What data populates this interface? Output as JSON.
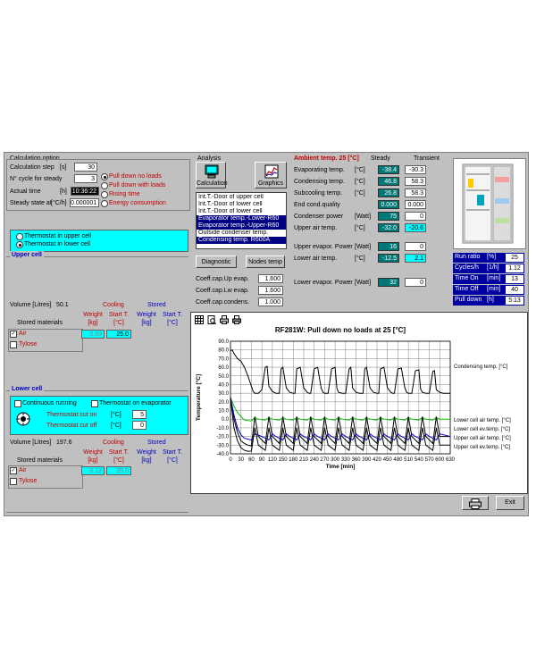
{
  "calc": {
    "title": "Calculation option",
    "step_label": "Calculation step",
    "step_unit": "[s]",
    "step_value": "30",
    "ncycle_label": "N° cycle for steady",
    "ncycle_value": "3",
    "actual_time_label": "Actual time",
    "actual_time_unit": "[h]",
    "actual_time_value": "10:36:22",
    "steady_label": "Steady state at",
    "steady_unit": "[°C/h]",
    "steady_value": "0.000001",
    "modes": [
      "Pull down no loads",
      "Pull down with loads",
      "Rising time",
      "Energy consumption"
    ],
    "selected_mode": 0
  },
  "thermostat": {
    "options": [
      "Thermostat in upper cell",
      "Thermostat in lower cell"
    ],
    "selected": 1
  },
  "upper_cell": {
    "title": "Upper cell",
    "volume_label": "Volume [Litres]",
    "volume_value": "50.1",
    "cooling_header": "Cooling",
    "stored_header": "Stored",
    "stored_materials_label": "Stored materials",
    "weight_label": "Weight [kg]",
    "start_label": "Start T. [°C]",
    "rows": [
      {
        "name": "Air",
        "checked": true,
        "weight": "0.03",
        "start": "25.0"
      },
      {
        "name": "Tylose",
        "checked": false,
        "weight": "",
        "start": ""
      }
    ]
  },
  "lower_cell": {
    "title": "Lower cell",
    "continuous_label": "Continuous running",
    "thermostat_evap_label": "Thermostat on evaporator",
    "cut_on_label": "Thermostat cut on",
    "cut_on_unit": "[°C]",
    "cut_on_value": "5",
    "cut_off_label": "Thermostat cut off",
    "cut_off_unit": "[°C]",
    "cut_off_value": "0",
    "volume_label": "Volume [Litres]",
    "volume_value": "197.6",
    "cooling_header": "Cooling",
    "stored_header": "Stored",
    "stored_materials_label": "Stored materials",
    "weight_label": "Weight [kg]",
    "start_label": "Start T. [°C]",
    "rows": [
      {
        "name": "Air",
        "checked": true,
        "weight": "0.12",
        "start": "25.0"
      },
      {
        "name": "Tylose",
        "checked": false,
        "weight": "",
        "start": ""
      }
    ]
  },
  "analysis": {
    "title": "Analysis",
    "calc_button": "Calculation",
    "graphics_button": "Graphics",
    "list": [
      "Int.T.-Door of upper cell",
      "Int.T.-Door of lower cell",
      "Int.T.-Door of lower cell",
      "Evaporator temp.-Lower-R60",
      "Evaporator temp.-Upper-R60",
      "Outside condenser temp.",
      "Condensing temp. R600A"
    ],
    "diagnostic_button": "Diagnostic",
    "nodes_button": "Nodes temp",
    "coeffs": [
      {
        "label": "Coeff.cap.Up evap.",
        "value": "1.600"
      },
      {
        "label": "Coeff.cap.Lw evap.",
        "value": "1.600"
      },
      {
        "label": "Coeff.cap.condens.",
        "value": "1.000"
      }
    ]
  },
  "results": {
    "ambient_label": "Ambient temp. 25 [°C]",
    "steady_header": "Steady",
    "transient_header": "Transient",
    "rows": [
      {
        "label": "Evaporating temp.",
        "unit": "[°C]",
        "steady": "-38.4",
        "transient": "-30.3"
      },
      {
        "label": "Condensing temp.",
        "unit": "[°C]",
        "steady": "46.8",
        "transient": "58.3"
      },
      {
        "label": "Subcooling temp.",
        "unit": "[°C]",
        "steady": "26.8",
        "transient": "58.3"
      },
      {
        "label": "End cond.quality",
        "unit": "",
        "steady": "0.000",
        "transient": "0.000"
      },
      {
        "label": "Condenser power",
        "unit": "[Watt]",
        "steady": "75",
        "transient": "0"
      },
      {
        "label": "Upper air temp.",
        "unit": "[°C]",
        "steady": "-32.0",
        "transient": "-20.6"
      },
      {
        "label": "Upper evapor. Power",
        "unit": "[Watt]",
        "steady": "16",
        "transient": "0"
      },
      {
        "label": "Lower air temp.",
        "unit": "[°C]",
        "steady": "-12.5",
        "transient": "2.1"
      },
      {
        "label": "Lower evapor. Power",
        "unit": "[Watt]",
        "steady": "32",
        "transient": "0"
      }
    ]
  },
  "cycle": {
    "rows": [
      {
        "label": "Run ratio",
        "unit": "[%]",
        "value": "25"
      },
      {
        "label": "Cycles/h",
        "unit": "[1/h]",
        "value": "1.12"
      },
      {
        "label": "Time On",
        "unit": "[min]",
        "value": "13"
      },
      {
        "label": "Time Off",
        "unit": "[min]",
        "value": "40"
      },
      {
        "label": "Pull down",
        "unit": "[h]",
        "value": "5:13"
      }
    ]
  },
  "chart_toolbar": [
    "table-icon",
    "preview-icon",
    "print-icon",
    "print-setup-icon"
  ],
  "chart_data": {
    "type": "line",
    "title": "RF281W: Pull down no loads at 25 [°C]",
    "xlabel": "Time [min]",
    "ylabel": "Temperature [°C]",
    "xlim": [
      0,
      630
    ],
    "ylim": [
      -40,
      90
    ],
    "xticks": [
      0,
      30,
      60,
      90,
      120,
      150,
      180,
      210,
      240,
      270,
      300,
      330,
      360,
      390,
      420,
      450,
      480,
      510,
      540,
      570,
      600,
      630
    ],
    "yticks": [
      90.0,
      80.0,
      70.0,
      60.0,
      50.0,
      40.0,
      30.0,
      20.0,
      10.0,
      0.0,
      -10.0,
      -20.0,
      -30.0,
      -40.0
    ],
    "grid": true,
    "series": [
      {
        "name": "Condensing temp. [°C]",
        "color": "#000000",
        "x": [
          0,
          5,
          10,
          20,
          30,
          40,
          50,
          60,
          65,
          70,
          80,
          90,
          100,
          105,
          110,
          120,
          130,
          140,
          145,
          150,
          160,
          170,
          180,
          185,
          190,
          200,
          210,
          220,
          225,
          230,
          240,
          250,
          260,
          265,
          270,
          280,
          290,
          300,
          305,
          310,
          320,
          330,
          340,
          345,
          350,
          360,
          370,
          380,
          385,
          390,
          400,
          410,
          420,
          425,
          430,
          440,
          450,
          460,
          465,
          470,
          480,
          490,
          500,
          505,
          510,
          520,
          530,
          540,
          545,
          550,
          560,
          570,
          580,
          585,
          590,
          600,
          610,
          620,
          625,
          630
        ],
        "y": [
          79,
          80,
          76,
          70,
          67,
          60,
          50,
          38,
          32,
          30,
          30,
          34,
          60,
          61,
          38,
          32,
          30,
          30,
          58,
          60,
          36,
          31,
          30,
          30,
          58,
          60,
          36,
          31,
          30,
          30,
          58,
          60,
          36,
          31,
          30,
          30,
          58,
          60,
          36,
          31,
          30,
          30,
          58,
          60,
          36,
          31,
          30,
          30,
          58,
          60,
          36,
          31,
          30,
          30,
          58,
          60,
          36,
          31,
          30,
          30,
          58,
          59,
          36,
          31,
          30,
          30,
          56,
          57,
          35,
          31,
          30,
          30,
          55,
          56,
          34,
          31,
          30,
          30,
          30,
          30
        ]
      },
      {
        "name": "Lower cell air temp. [°C]",
        "color": "#00c000",
        "x": [
          0,
          10,
          20,
          30,
          40,
          60,
          70,
          80,
          100,
          110,
          120,
          140,
          150,
          160,
          180,
          190,
          200,
          220,
          230,
          240,
          260,
          270,
          280,
          300,
          310,
          320,
          340,
          350,
          360,
          380,
          390,
          400,
          420,
          430,
          440,
          460,
          470,
          480,
          500,
          510,
          520,
          540,
          550,
          560,
          580,
          590,
          600,
          630
        ],
        "y": [
          25,
          15,
          8,
          3,
          -1,
          -2,
          2,
          0,
          -1,
          2,
          0,
          -1,
          2,
          0,
          -1,
          2,
          0,
          -1,
          2,
          0,
          -1,
          2,
          0,
          -1,
          2,
          0,
          -1,
          2,
          0,
          -1,
          2,
          0,
          -1,
          2,
          0,
          -1,
          2,
          0,
          -1,
          2,
          0,
          -1,
          2,
          0,
          -1,
          2,
          0,
          0
        ]
      },
      {
        "name": "Lower cell ev.temp. [°C]",
        "color": "#000000",
        "x": [
          0,
          10,
          20,
          30,
          40,
          50,
          60,
          70,
          80,
          100,
          110,
          120,
          140,
          150,
          160,
          180,
          190,
          200,
          220,
          230,
          240,
          260,
          270,
          280,
          300,
          310,
          320,
          340,
          350,
          360,
          380,
          390,
          400,
          420,
          430,
          440,
          460,
          470,
          480,
          500,
          510,
          520,
          540,
          550,
          560,
          580,
          590,
          600,
          630
        ],
        "y": [
          25,
          0,
          -15,
          -25,
          -28,
          -30,
          -31,
          3,
          -20,
          -28,
          3,
          -20,
          -28,
          3,
          -20,
          -28,
          3,
          -20,
          -28,
          3,
          -20,
          -28,
          3,
          -20,
          -28,
          3,
          -20,
          -28,
          3,
          -20,
          -28,
          3,
          -20,
          -28,
          3,
          -20,
          -28,
          3,
          -20,
          -28,
          3,
          -20,
          -28,
          3,
          -20,
          -28,
          3,
          -20,
          -20
        ]
      },
      {
        "name": "Upper cell air temp. [°C]",
        "color": "#0000c0",
        "x": [
          0,
          10,
          20,
          30,
          40,
          60,
          70,
          90,
          110,
          120,
          130,
          150,
          160,
          170,
          190,
          200,
          210,
          230,
          240,
          250,
          270,
          280,
          290,
          310,
          320,
          330,
          350,
          360,
          370,
          390,
          400,
          410,
          430,
          440,
          450,
          470,
          480,
          490,
          510,
          520,
          530,
          550,
          560,
          570,
          590,
          600,
          630
        ],
        "y": [
          25,
          5,
          -10,
          -18,
          -22,
          -24,
          -17,
          -20,
          -24,
          -17,
          -20,
          -24,
          -17,
          -20,
          -24,
          -17,
          -20,
          -24,
          -17,
          -20,
          -24,
          -17,
          -20,
          -24,
          -17,
          -20,
          -24,
          -17,
          -20,
          -24,
          -17,
          -20,
          -24,
          -17,
          -20,
          -24,
          -17,
          -20,
          -24,
          -17,
          -20,
          -24,
          -17,
          -20,
          -24,
          -17,
          -20
        ]
      },
      {
        "name": "Upper cell ev.temp. [°C]",
        "color": "#000000",
        "x": [
          0,
          10,
          20,
          30,
          40,
          50,
          60,
          70,
          80,
          100,
          110,
          120,
          140,
          150,
          160,
          180,
          190,
          200,
          220,
          230,
          240,
          260,
          270,
          280,
          300,
          310,
          320,
          340,
          350,
          360,
          380,
          390,
          400,
          420,
          430,
          440,
          460,
          470,
          480,
          500,
          510,
          520,
          540,
          550,
          560,
          580,
          590,
          600,
          630
        ],
        "y": [
          25,
          -10,
          -25,
          -33,
          -36,
          -37,
          -37,
          -10,
          -30,
          -36,
          -10,
          -30,
          -36,
          -10,
          -30,
          -36,
          -10,
          -30,
          -36,
          -10,
          -30,
          -36,
          -10,
          -30,
          -36,
          -10,
          -30,
          -36,
          -10,
          -30,
          -36,
          -10,
          -30,
          -36,
          -10,
          -30,
          -36,
          -10,
          -30,
          -36,
          -10,
          -30,
          -36,
          -10,
          -30,
          -36,
          -10,
          -30,
          -30
        ]
      }
    ]
  },
  "footer": {
    "exit_label": "Exit"
  }
}
